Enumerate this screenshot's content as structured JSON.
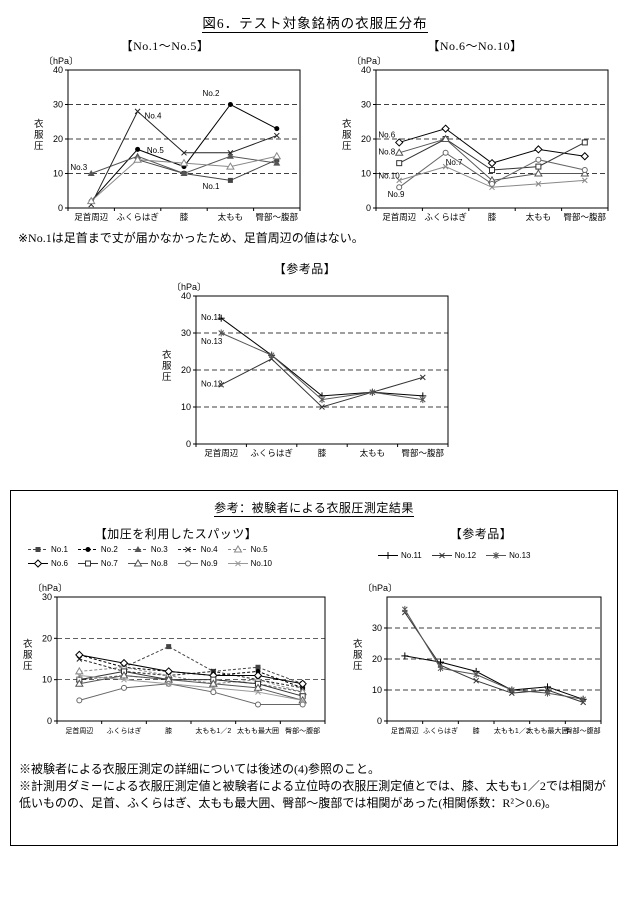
{
  "page": {
    "title": "図6．テスト対象銘柄の衣服圧分布",
    "note": "※No.1は足首まで丈が届かなかったため、足首周辺の値はない。"
  },
  "reference_box": {
    "title": "参考：被験者による衣服圧測定結果",
    "note_1": "※被験者による衣服圧測定の詳細については後述の(4)参照のこと。",
    "note_2": "※計測用ダミーによる衣服圧測定値と被験者による立位時の衣服圧測定値とでは、膝、太もも1／2では相関が低いものの、足首、ふくらはぎ、太もも最大囲、臀部～腹部では相関があった(相関係数：R²＞0.6)。"
  },
  "colors": {
    "ink": "#000000",
    "grid": "#000000",
    "gray_series": "#888888"
  },
  "chart_data": [
    {
      "id": "chart-no1-5",
      "type": "line",
      "title": "【No.1～No.5】",
      "unit": "〔hPa〕",
      "ylabel": "衣服圧",
      "ylim": [
        0,
        40
      ],
      "yticks": [
        0,
        10,
        20,
        30,
        40
      ],
      "grid": "dashed-horizontal",
      "legend_position": "none",
      "categories": [
        "足首周辺",
        "ふくらはぎ",
        "膝",
        "太もも",
        "臀部～腹部"
      ],
      "xfont": 8.5,
      "series": [
        {
          "name": "No.1",
          "marker": "sq-fill",
          "color": "#444444",
          "values": [
            null,
            14,
            10,
            8,
            14
          ]
        },
        {
          "name": "No.2",
          "marker": "dot",
          "color": "#000000",
          "values": [
            2,
            17,
            12,
            30,
            23
          ]
        },
        {
          "name": "No.3",
          "marker": "tri-fill",
          "color": "#555555",
          "values": [
            10,
            15,
            10,
            15,
            13
          ]
        },
        {
          "name": "No.4",
          "marker": "x",
          "color": "#222222",
          "values": [
            1,
            28,
            16,
            16,
            21
          ]
        },
        {
          "name": "No.5",
          "marker": "tri",
          "color": "#888888",
          "values": [
            2,
            14,
            13,
            12,
            15
          ]
        }
      ],
      "annotations": [
        {
          "text": "No.2",
          "fx": 0.58,
          "y": 32.5
        },
        {
          "text": "No.4",
          "fx": 0.33,
          "y": 26
        },
        {
          "text": "No.5",
          "fx": 0.34,
          "y": 16
        },
        {
          "text": "No.3",
          "fx": 0.01,
          "y": 11
        },
        {
          "text": "No.1",
          "fx": 0.58,
          "y": 5.5
        }
      ]
    },
    {
      "id": "chart-no6-10",
      "type": "line",
      "title": "【No.6～No.10】",
      "unit": "〔hPa〕",
      "ylabel": "衣服圧",
      "ylim": [
        0,
        40
      ],
      "yticks": [
        0,
        10,
        20,
        30,
        40
      ],
      "grid": "dashed-horizontal",
      "legend_position": "none",
      "categories": [
        "足首周辺",
        "ふくらはぎ",
        "膝",
        "太もも",
        "臀部～腹部"
      ],
      "xfont": 8.5,
      "series": [
        {
          "name": "No.6",
          "marker": "diamond",
          "color": "#000000",
          "values": [
            19,
            23,
            13,
            17,
            15
          ]
        },
        {
          "name": "No.7",
          "marker": "sq",
          "color": "#333333",
          "values": [
            13,
            20,
            11,
            12,
            19
          ]
        },
        {
          "name": "No.8",
          "marker": "tri",
          "color": "#555555",
          "values": [
            16,
            20,
            8,
            10,
            10
          ]
        },
        {
          "name": "No.9",
          "marker": "circle",
          "color": "#666666",
          "values": [
            6,
            16,
            7,
            14,
            11
          ]
        },
        {
          "name": "No.10",
          "marker": "x",
          "color": "#888888",
          "values": [
            8,
            12,
            6,
            7,
            8
          ]
        }
      ],
      "annotations": [
        {
          "text": "No.6",
          "fx": 0.01,
          "y": 20.5
        },
        {
          "text": "No.8",
          "fx": 0.01,
          "y": 15.5
        },
        {
          "text": "No.7",
          "fx": 0.3,
          "y": 12.5
        },
        {
          "text": "No.10",
          "fx": 0.01,
          "y": 8.5
        },
        {
          "text": "No.9",
          "fx": 0.05,
          "y": 3.2
        }
      ]
    },
    {
      "id": "chart-reference",
      "type": "line",
      "title": "【参考品】",
      "unit": "〔hPa〕",
      "ylabel": "衣服圧",
      "ylim": [
        0,
        40
      ],
      "yticks": [
        0,
        10,
        20,
        30,
        40
      ],
      "grid": "dashed-horizontal",
      "legend_position": "none",
      "categories": [
        "足首周辺",
        "ふくらはぎ",
        "膝",
        "太もも",
        "臀部～腹部"
      ],
      "xfont": 8.5,
      "series": [
        {
          "name": "No.11",
          "marker": "plus",
          "color": "#000000",
          "values": [
            34,
            24,
            13,
            14,
            13
          ]
        },
        {
          "name": "No.12",
          "marker": "x",
          "color": "#333333",
          "values": [
            16,
            23,
            10,
            14,
            18
          ]
        },
        {
          "name": "No.13",
          "marker": "star",
          "color": "#555555",
          "values": [
            30,
            24,
            12,
            14,
            12
          ]
        }
      ],
      "annotations": [
        {
          "text": "No.11",
          "fx": 0.02,
          "y": 33.5
        },
        {
          "text": "No.13",
          "fx": 0.02,
          "y": 27
        },
        {
          "text": "No.12",
          "fx": 0.02,
          "y": 15.5
        }
      ]
    },
    {
      "id": "chart-subject-spats",
      "type": "line",
      "title": "【加圧を利用したスパッツ】",
      "unit": "〔hPa〕",
      "ylabel": "衣服圧",
      "ylim": [
        0,
        30
      ],
      "yticks": [
        0,
        10,
        20,
        30
      ],
      "grid": "dashed-horizontal",
      "legend_position": "top",
      "categories": [
        "足首周辺",
        "ふくらはぎ",
        "膝",
        "太もも1／2",
        "太もも最大囲",
        "臀部～腹部"
      ],
      "xfont": 7,
      "series": [
        {
          "name": "No.1",
          "marker": "sq-fill",
          "dash": "3,2",
          "color": "#444444",
          "values": [
            null,
            13,
            18,
            12,
            13,
            9
          ]
        },
        {
          "name": "No.2",
          "marker": "dot",
          "dash": "3,2",
          "color": "#000000",
          "values": [
            16,
            13,
            12,
            11,
            12,
            8
          ]
        },
        {
          "name": "No.3",
          "marker": "tri-fill",
          "dash": "3,2",
          "color": "#555555",
          "values": [
            10,
            11,
            10,
            10,
            9,
            7
          ]
        },
        {
          "name": "No.4",
          "marker": "x",
          "dash": "3,2",
          "color": "#222222",
          "values": [
            15,
            12,
            11,
            12,
            10,
            8
          ]
        },
        {
          "name": "No.5",
          "marker": "tri",
          "dash": "3,2",
          "color": "#888888",
          "values": [
            12,
            13,
            11,
            9,
            10,
            7
          ]
        },
        {
          "name": "No.6",
          "marker": "diamond",
          "color": "#000000",
          "values": [
            16,
            14,
            12,
            11,
            11,
            9
          ]
        },
        {
          "name": "No.7",
          "marker": "sq",
          "color": "#333333",
          "values": [
            10,
            12,
            10,
            10,
            9,
            6
          ]
        },
        {
          "name": "No.8",
          "marker": "tri",
          "color": "#555555",
          "values": [
            9,
            11,
            10,
            9,
            8,
            5
          ]
        },
        {
          "name": "No.9",
          "marker": "circle",
          "color": "#666666",
          "values": [
            5,
            8,
            9,
            7,
            4,
            4
          ]
        },
        {
          "name": "No.10",
          "marker": "x",
          "color": "#999999",
          "values": [
            11,
            10,
            9,
            8,
            7,
            5
          ]
        }
      ],
      "annotations": []
    },
    {
      "id": "chart-subject-reference",
      "type": "line",
      "title": "【参考品】",
      "unit": "〔hPa〕",
      "ylabel": "衣服圧",
      "ylim": [
        0,
        40
      ],
      "yticks": [
        0,
        10,
        20,
        30
      ],
      "grid": "dashed-horizontal",
      "legend_position": "top",
      "categories": [
        "足首周辺",
        "ふくらはぎ",
        "膝",
        "太もも1／2",
        "太もも最大囲",
        "臀部～腹部"
      ],
      "xfont": 7,
      "series": [
        {
          "name": "No.11",
          "marker": "plus",
          "color": "#000000",
          "values": [
            21,
            19,
            16,
            10,
            11,
            7
          ]
        },
        {
          "name": "No.12",
          "marker": "x",
          "color": "#333333",
          "values": [
            35,
            18,
            13,
            9,
            10,
            6
          ]
        },
        {
          "name": "No.13",
          "marker": "star",
          "color": "#555555",
          "values": [
            36,
            17,
            15,
            10,
            9,
            7
          ]
        }
      ],
      "annotations": []
    }
  ]
}
